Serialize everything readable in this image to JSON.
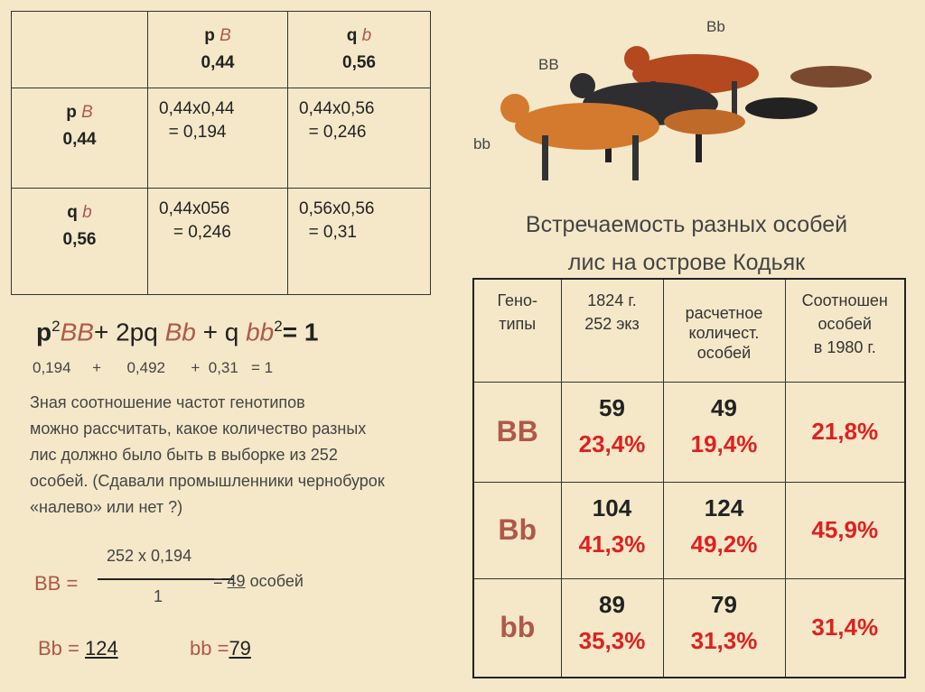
{
  "punnett": {
    "columns": [
      {
        "allele_coef": "p",
        "allele": "B",
        "freq": "0,44"
      },
      {
        "allele_coef": "q",
        "allele": "b",
        "freq": "0,56"
      }
    ],
    "rows": [
      {
        "allele_coef": "p",
        "allele": "B",
        "freq": "0,44",
        "cells": [
          [
            "0,44x0,44",
            "= 0,194"
          ],
          [
            "0,44x0,56",
            "= 0,246"
          ]
        ]
      },
      {
        "allele_coef": "q",
        "allele": "b",
        "freq": "0,56",
        "cells": [
          [
            "0,44x056",
            "= 0,246"
          ],
          [
            "0,56x0,56",
            "= 0,31"
          ]
        ]
      }
    ]
  },
  "formula": {
    "parts": [
      "p",
      "2",
      "BB",
      "+ 2pq",
      "Bb",
      "+ q",
      "bb",
      "2",
      "= 1"
    ],
    "values": [
      "0,194",
      "+",
      "0,492",
      "+",
      "0,31",
      "= 1"
    ]
  },
  "paragraph": [
    "Зная соотношение частот генотипов",
    "можно рассчитать, какое количество разных",
    "лис должно было быть в выборке из 252",
    "особей. (Сдавали промышленники чернобурок",
    "«налево» или нет ?)"
  ],
  "calc": {
    "numerator": "252 x 0,194",
    "denominator": "1",
    "lhs": "BB =",
    "eq": "=",
    "result": "49",
    "unit": "особей",
    "bb_het_label": "Bb =",
    "bb_het_value": "124",
    "bb_rec_label": "bb =",
    "bb_rec_value": "79"
  },
  "fox_labels": [
    "Bb",
    "BB",
    "bb"
  ],
  "title": [
    "Встречаемость разных особей",
    "лис на острове Кодьяк"
  ],
  "table": {
    "headers": [
      [
        "Гено-",
        "типы"
      ],
      [
        "1824 г.",
        "252 экз"
      ],
      [
        "расчетное",
        "количест.",
        "особей"
      ],
      [
        "Соотношен",
        "особей",
        "в 1980 г."
      ]
    ],
    "rows": [
      {
        "genotype": "BB",
        "count_1824": "59",
        "pct_1824": "23,4%",
        "count_calc": "49",
        "pct_calc": "19,4%",
        "pct_1980": "21,8%"
      },
      {
        "genotype": "Bb",
        "count_1824": "104",
        "pct_1824": "41,3%",
        "count_calc": "124",
        "pct_calc": "49,2%",
        "pct_1980": "45,9%"
      },
      {
        "genotype": "bb",
        "count_1824": "89",
        "pct_1824": "35,3%",
        "count_calc": "79",
        "pct_calc": "31,3%",
        "pct_1980": "31,4%"
      }
    ]
  }
}
